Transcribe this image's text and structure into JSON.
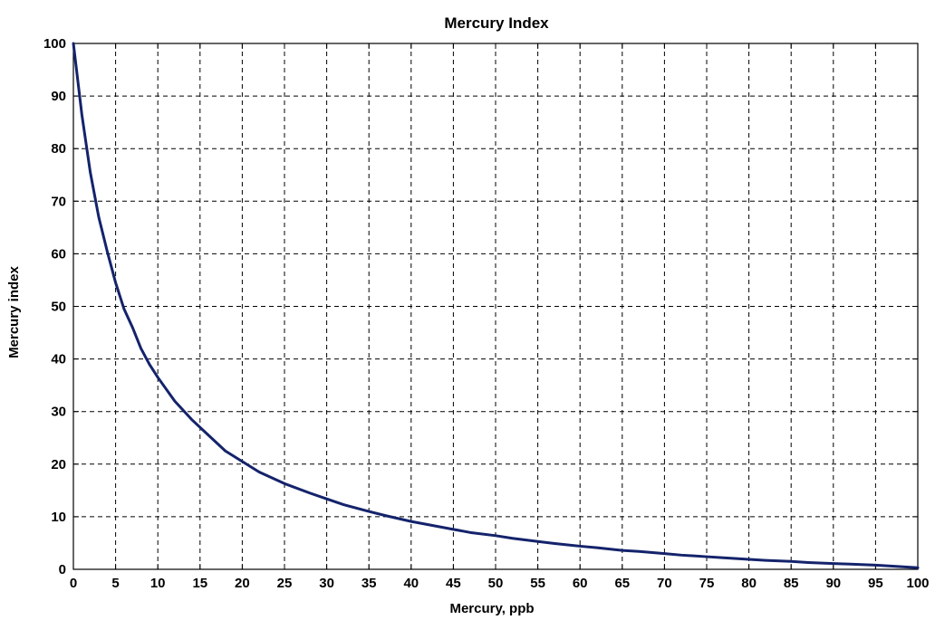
{
  "chart_data": {
    "type": "line",
    "title": "Mercury Index",
    "xlabel": "Mercury, ppb",
    "ylabel": "Mercury index",
    "xlim": [
      0,
      100
    ],
    "ylim": [
      0,
      100
    ],
    "xticks": [
      0,
      5,
      10,
      15,
      20,
      25,
      30,
      35,
      40,
      45,
      50,
      55,
      60,
      65,
      70,
      75,
      80,
      85,
      90,
      95,
      100
    ],
    "yticks": [
      0,
      10,
      20,
      30,
      40,
      50,
      60,
      70,
      80,
      90,
      100
    ],
    "grid": true,
    "line_color": "#14236b",
    "series": [
      {
        "x": [
          0,
          1,
          2,
          3,
          4,
          5,
          6,
          7,
          8,
          9,
          10,
          12,
          14,
          16,
          18,
          20,
          22,
          25,
          28,
          30,
          32,
          35,
          37,
          40,
          42,
          45,
          47,
          50,
          52,
          55,
          57,
          60,
          62,
          65,
          67,
          70,
          72,
          75,
          77,
          80,
          82,
          85,
          87,
          90,
          92,
          95,
          97,
          100
        ],
        "y": [
          100,
          86.5,
          75.5,
          67,
          60.5,
          54.5,
          49.5,
          46,
          42,
          39,
          36.5,
          32,
          28.5,
          25.5,
          22.5,
          20.5,
          18.5,
          16.3,
          14.5,
          13.4,
          12.3,
          11,
          10.2,
          9.1,
          8.5,
          7.6,
          7,
          6.4,
          5.9,
          5.3,
          4.9,
          4.4,
          4.1,
          3.6,
          3.4,
          3,
          2.7,
          2.4,
          2.2,
          1.9,
          1.7,
          1.5,
          1.3,
          1.1,
          1,
          0.8,
          0.6,
          0.3
        ]
      }
    ]
  }
}
